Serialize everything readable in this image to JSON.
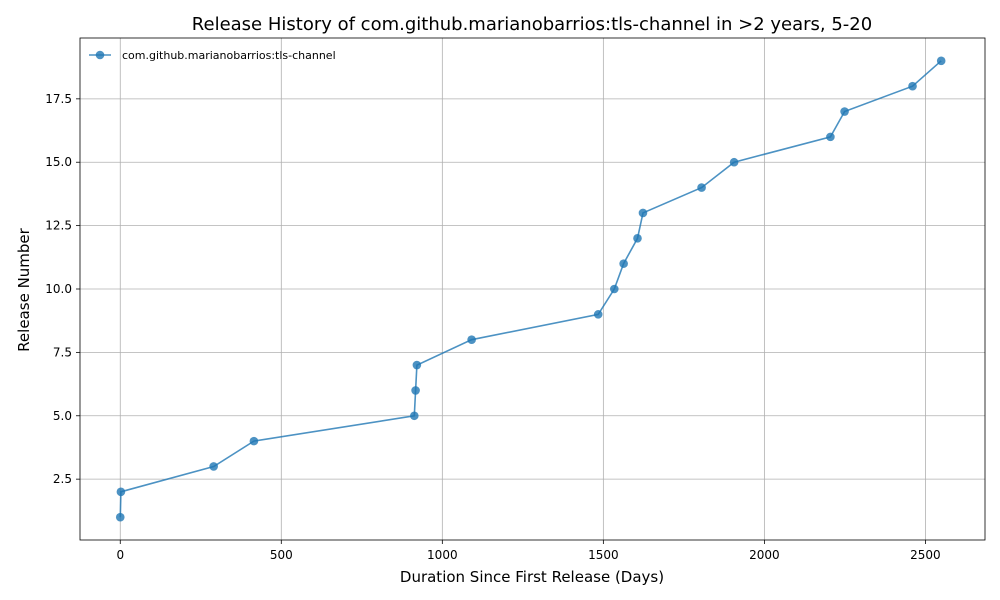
{
  "chart_data": {
    "type": "line",
    "title": "Release History of com.github.marianobarrios:tls-channel in >2 years, 5-20",
    "xlabel": "Duration Since First Release (Days)",
    "ylabel": "Release Number",
    "xlim": [
      -125,
      2685
    ],
    "ylim": [
      0.1,
      19.9
    ],
    "xticks": [
      0,
      500,
      1000,
      1500,
      2000,
      2500
    ],
    "xtick_labels": [
      "0",
      "500",
      "1000",
      "1500",
      "2000",
      "2500"
    ],
    "yticks": [
      2.5,
      5.0,
      7.5,
      10.0,
      12.5,
      15.0,
      17.5
    ],
    "ytick_labels": [
      "2.5",
      "5.0",
      "7.5",
      "10.0",
      "12.5",
      "15.0",
      "17.5"
    ],
    "grid": true,
    "legend_position": "upper-left",
    "series": [
      {
        "name": "com.github.marianobarrios:tls-channel",
        "color": "#1f77b4",
        "marker": "circle",
        "x": [
          0,
          2,
          290,
          415,
          913,
          917,
          921,
          1091,
          1484,
          1534,
          1563,
          1606,
          1623,
          1805,
          1906,
          2205,
          2249,
          2460,
          2549
        ],
        "y": [
          1,
          2,
          3,
          4,
          5,
          6,
          7,
          8,
          9,
          10,
          11,
          12,
          13,
          14,
          15,
          16,
          17,
          18,
          19
        ]
      }
    ]
  }
}
